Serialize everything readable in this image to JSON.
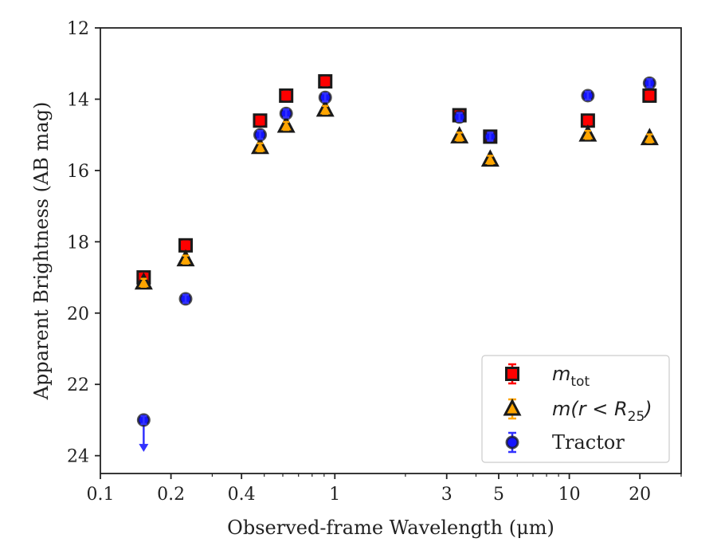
{
  "chart_data": {
    "type": "scatter",
    "xlabel": "Observed-frame Wavelength (μm)",
    "ylabel": "Apparent Brightness (AB mag)",
    "x_scale": "log",
    "xlim": [
      0.1,
      30
    ],
    "ylim": [
      24.5,
      12
    ],
    "y_inverted": true,
    "x_ticks": [
      0.1,
      0.2,
      0.4,
      1,
      3,
      5,
      10,
      20
    ],
    "x_tick_labels": [
      "0.1",
      "0.2",
      "0.4",
      "1",
      "3",
      "5",
      "10",
      "20"
    ],
    "y_ticks": [
      12,
      14,
      16,
      18,
      20,
      22,
      24
    ],
    "y_tick_labels": [
      "12",
      "14",
      "16",
      "18",
      "20",
      "22",
      "24"
    ],
    "grid": false,
    "legend_position": "bottom-right",
    "series": [
      {
        "name": "m_tot",
        "marker": "square",
        "color": "#ff0000",
        "error_color": "#ff0000",
        "x": [
          0.153,
          0.231,
          0.48,
          0.62,
          0.91,
          3.4,
          4.6,
          12,
          22
        ],
        "y": [
          19.0,
          18.1,
          14.6,
          13.9,
          13.5,
          14.45,
          15.05,
          14.6,
          13.9
        ]
      },
      {
        "name": "m(r < R25)",
        "marker": "triangle",
        "color": "#ffa500",
        "error_color": "#ffa500",
        "x": [
          0.153,
          0.231,
          0.48,
          0.62,
          0.91,
          3.4,
          4.6,
          12,
          22
        ],
        "y": [
          19.15,
          18.5,
          15.35,
          14.75,
          14.3,
          15.05,
          15.7,
          15.0,
          15.1
        ]
      },
      {
        "name": "Tractor",
        "marker": "circle",
        "color": "#1414ff",
        "error_color": "#3232ff",
        "x": [
          0.153,
          0.231,
          0.48,
          0.62,
          0.91,
          3.4,
          4.6,
          12,
          22
        ],
        "y": [
          23.0,
          19.6,
          15.0,
          14.4,
          13.95,
          14.5,
          15.05,
          13.9,
          13.55
        ],
        "upper_limit": [
          true,
          false,
          false,
          false,
          false,
          false,
          false,
          false,
          false
        ]
      }
    ]
  },
  "legend": {
    "items": [
      {
        "base": "m",
        "sub": "tot",
        "tail": ""
      },
      {
        "base": "m(r < R",
        "sub": "25",
        "tail": ")"
      },
      {
        "base": "Tractor",
        "sub": "",
        "tail": ""
      }
    ]
  }
}
